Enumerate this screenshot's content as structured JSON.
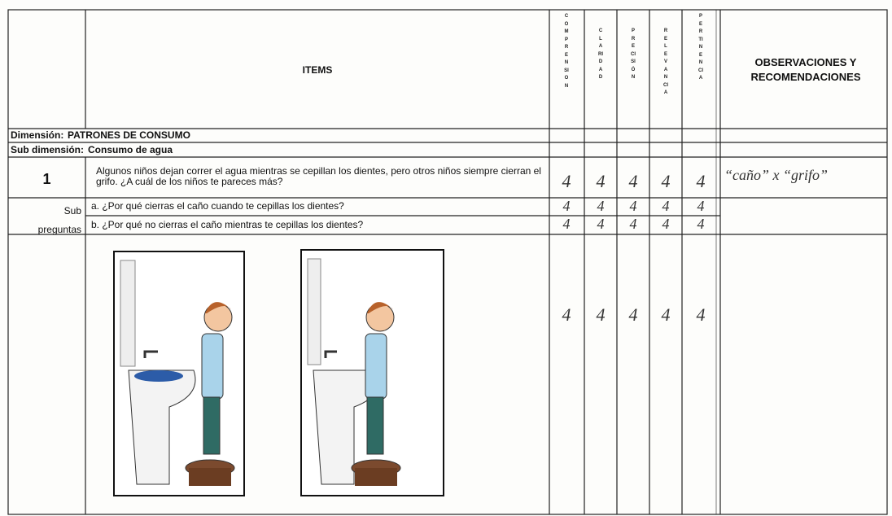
{
  "header": {
    "items_label": "ITEMS",
    "criteria": [
      "COMPRENSION",
      "CLARIDAD",
      "PRECISIÓN",
      "RELEVANCIA",
      "PERTINENCIA"
    ],
    "observations_label": "OBSERVACIONES Y RECOMENDACIONES"
  },
  "dimension": {
    "label": "Dimensión:",
    "value": "PATRONES DE CONSUMO"
  },
  "sub_dimension": {
    "label": "Sub dimensión:",
    "value": "Consumo de agua"
  },
  "item": {
    "number": 1,
    "text": "Algunos niños dejan correr el agua mientras se cepillan los dientes, pero otros niños siempre cierran el grifo. ¿A cuál de los niños te pareces más?",
    "scores": [
      4,
      4,
      4,
      4,
      4
    ],
    "observation": "“caño” x “grifo”"
  },
  "sub_questions": {
    "label": "Sub preguntas",
    "questions": [
      {
        "text": "a. ¿Por qué cierras el caño cuando te cepillas los dientes?",
        "scores": [
          4,
          4,
          4,
          4,
          4
        ]
      },
      {
        "text": "b. ¿Por qué no cierras el caño mientras te cepillas los dientes?",
        "scores": [
          4,
          4,
          4,
          4,
          4
        ]
      }
    ]
  },
  "image_scores": [
    4,
    4,
    4,
    4,
    4
  ]
}
